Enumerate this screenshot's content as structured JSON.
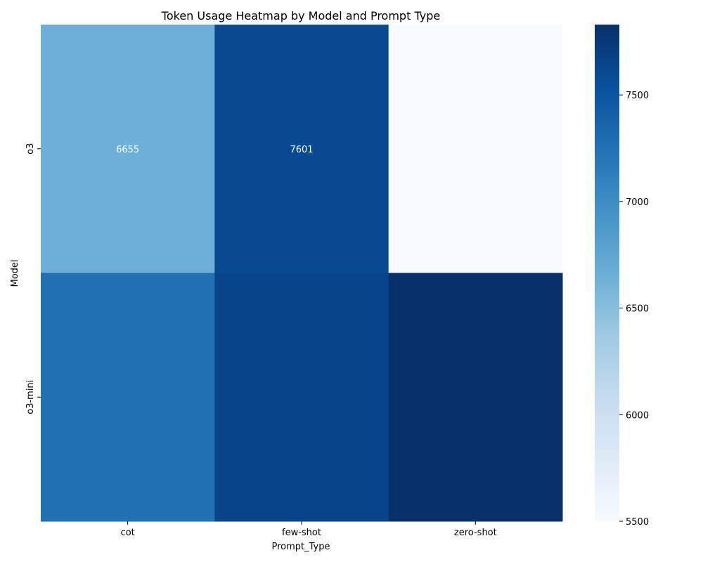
{
  "chart_data": {
    "type": "heatmap",
    "title": "Token Usage Heatmap by Model and Prompt Type",
    "xlabel": "Prompt_Type",
    "ylabel": "Model",
    "x_categories": [
      "cot",
      "few-shot",
      "zero-shot"
    ],
    "y_categories": [
      "o3",
      "o3-mini"
    ],
    "values": [
      [
        6655,
        7601,
        null
      ],
      [
        7250,
        7650,
        7830
      ]
    ],
    "cell_labels": [
      [
        "6655",
        "7601",
        ""
      ],
      [
        "",
        "",
        ""
      ]
    ],
    "colorbar": {
      "min": 5500,
      "max": 7830,
      "ticks": [
        5500,
        6000,
        6500,
        7000,
        7500
      ],
      "colormap": "Blues",
      "colormap_stops": [
        "#f7fbff",
        "#deebf7",
        "#c6dbef",
        "#9ecae1",
        "#6baed6",
        "#4292c6",
        "#2171b5",
        "#08519c",
        "#08306b"
      ]
    },
    "missing_cell_color": "#f7fbff",
    "grid": false
  }
}
